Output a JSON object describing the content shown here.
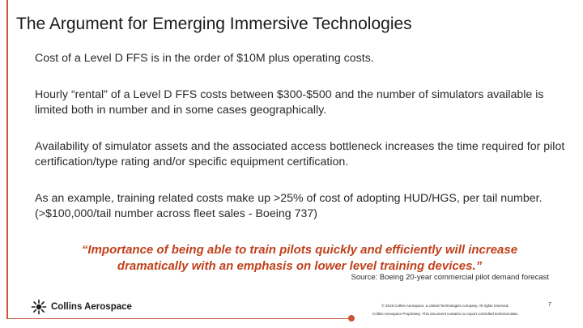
{
  "slide": {
    "title": "The Argument for Emerging Immersive Technologies",
    "bullets": [
      "Cost of a Level D FFS is in the order of $10M plus operating costs.",
      "Hourly “rental” of a Level D FFS costs between $300-$500 and the number of simulators available is limited both in number and in some cases geographically.",
      "Availability of simulator assets and the associated access bottleneck increases the time required for pilot certification/type rating and/or specific equipment certification.",
      "As an example, training related costs make up >25% of cost of adopting HUD/HGS, per tail number. (>$100,000/tail number across fleet sales - Boeing 737)"
    ],
    "quote": "“Importance of being able to train pilots quickly and efficiently will increase dramatically with an emphasis on lower level training devices.”",
    "source": "Source: Boeing 20-year commercial pilot demand forecast"
  },
  "footer": {
    "logo_text": "Collins Aerospace",
    "copyright": "© 2019 Collins Aerospace, a United Technologies company. All rights reserved.",
    "proprietary": "Collins Aerospace Proprietary. This document contains no export controlled technical data.",
    "page_number": "7"
  },
  "colors": {
    "accent": "#c8553a",
    "quote": "#c0401a"
  }
}
